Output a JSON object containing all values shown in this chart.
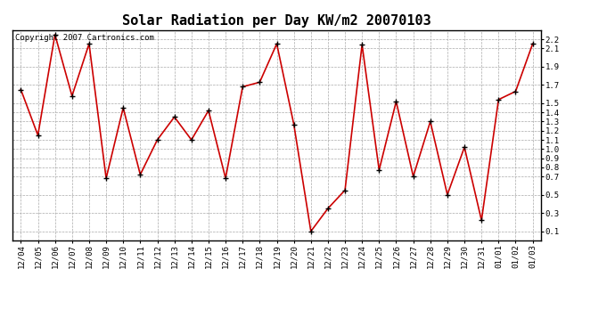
{
  "title": "Solar Radiation per Day KW/m2 20070103",
  "copyright": "Copyright 2007 Cartronics.com",
  "dates": [
    "12/04",
    "12/05",
    "12/06",
    "12/07",
    "12/08",
    "12/09",
    "12/10",
    "12/11",
    "12/12",
    "12/13",
    "12/14",
    "12/15",
    "12/16",
    "12/17",
    "12/18",
    "12/19",
    "12/20",
    "12/21",
    "12/22",
    "12/23",
    "12/24",
    "12/25",
    "12/26",
    "12/27",
    "12/28",
    "12/29",
    "12/30",
    "12/31",
    "01/01",
    "01/02",
    "01/03"
  ],
  "values": [
    1.65,
    1.15,
    2.25,
    1.58,
    2.15,
    0.68,
    1.45,
    0.72,
    1.1,
    1.35,
    1.1,
    1.42,
    0.68,
    1.68,
    1.73,
    2.15,
    1.27,
    0.1,
    0.35,
    0.55,
    2.14,
    0.77,
    1.52,
    0.7,
    1.3,
    0.5,
    1.02,
    0.22,
    1.54,
    1.63,
    2.15
  ],
  "line_color": "#cc0000",
  "marker_edge_color": "#000000",
  "bg_color": "#ffffff",
  "grid_color": "#aaaaaa",
  "ylim_min": 0.0,
  "ylim_max": 2.3,
  "yticks": [
    0.1,
    0.3,
    0.5,
    0.7,
    0.8,
    0.9,
    1.0,
    1.1,
    1.2,
    1.3,
    1.4,
    1.5,
    1.7,
    1.9,
    2.1,
    2.2
  ],
  "title_fontsize": 11,
  "copyright_fontsize": 6.5,
  "tick_fontsize": 6.5
}
